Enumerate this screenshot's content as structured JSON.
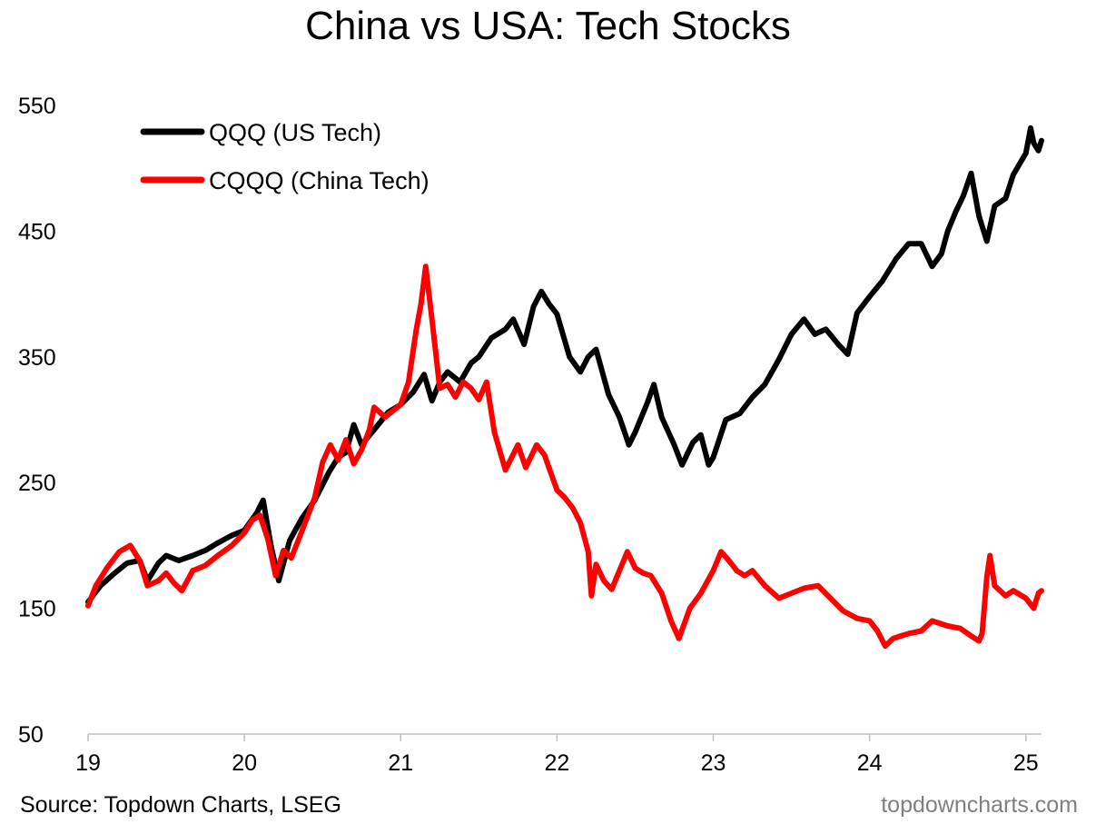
{
  "chart_data": {
    "type": "line",
    "title": "China vs USA: Tech Stocks",
    "xlabel": "",
    "ylabel": "",
    "x_range": [
      2019.0,
      2025.1
    ],
    "ylim": [
      50,
      550
    ],
    "y_ticks": [
      50,
      150,
      250,
      350,
      450,
      550
    ],
    "x_ticks": [
      {
        "value": 2019,
        "label": "19"
      },
      {
        "value": 2020,
        "label": "20"
      },
      {
        "value": 2021,
        "label": "21"
      },
      {
        "value": 2022,
        "label": "22"
      },
      {
        "value": 2023,
        "label": "23"
      },
      {
        "value": 2024,
        "label": "24"
      },
      {
        "value": 2025,
        "label": "25"
      }
    ],
    "grid": false,
    "legend_position": "top-left",
    "series": [
      {
        "name": "QQQ (US Tech)",
        "color": "#000000",
        "points": [
          [
            2019.0,
            155
          ],
          [
            2019.08,
            168
          ],
          [
            2019.17,
            178
          ],
          [
            2019.25,
            186
          ],
          [
            2019.33,
            188
          ],
          [
            2019.38,
            172
          ],
          [
            2019.45,
            186
          ],
          [
            2019.5,
            192
          ],
          [
            2019.58,
            188
          ],
          [
            2019.67,
            192
          ],
          [
            2019.75,
            196
          ],
          [
            2019.83,
            202
          ],
          [
            2019.92,
            208
          ],
          [
            2020.0,
            212
          ],
          [
            2020.08,
            226
          ],
          [
            2020.12,
            236
          ],
          [
            2020.17,
            200
          ],
          [
            2020.22,
            172
          ],
          [
            2020.29,
            204
          ],
          [
            2020.37,
            222
          ],
          [
            2020.45,
            236
          ],
          [
            2020.54,
            258
          ],
          [
            2020.6,
            270
          ],
          [
            2020.65,
            274
          ],
          [
            2020.7,
            296
          ],
          [
            2020.75,
            280
          ],
          [
            2020.83,
            292
          ],
          [
            2020.92,
            306
          ],
          [
            2021.0,
            312
          ],
          [
            2021.08,
            322
          ],
          [
            2021.15,
            336
          ],
          [
            2021.2,
            315
          ],
          [
            2021.25,
            330
          ],
          [
            2021.3,
            338
          ],
          [
            2021.38,
            330
          ],
          [
            2021.45,
            345
          ],
          [
            2021.5,
            350
          ],
          [
            2021.58,
            365
          ],
          [
            2021.67,
            372
          ],
          [
            2021.72,
            380
          ],
          [
            2021.79,
            360
          ],
          [
            2021.85,
            390
          ],
          [
            2021.9,
            402
          ],
          [
            2021.95,
            392
          ],
          [
            2022.0,
            384
          ],
          [
            2022.08,
            350
          ],
          [
            2022.15,
            338
          ],
          [
            2022.2,
            350
          ],
          [
            2022.25,
            356
          ],
          [
            2022.33,
            320
          ],
          [
            2022.4,
            302
          ],
          [
            2022.46,
            280
          ],
          [
            2022.5,
            290
          ],
          [
            2022.58,
            314
          ],
          [
            2022.62,
            328
          ],
          [
            2022.67,
            302
          ],
          [
            2022.75,
            280
          ],
          [
            2022.8,
            264
          ],
          [
            2022.87,
            282
          ],
          [
            2022.92,
            288
          ],
          [
            2022.97,
            264
          ],
          [
            2023.0,
            270
          ],
          [
            2023.08,
            300
          ],
          [
            2023.17,
            305
          ],
          [
            2023.25,
            318
          ],
          [
            2023.33,
            328
          ],
          [
            2023.42,
            348
          ],
          [
            2023.5,
            368
          ],
          [
            2023.58,
            380
          ],
          [
            2023.65,
            368
          ],
          [
            2023.72,
            372
          ],
          [
            2023.8,
            360
          ],
          [
            2023.86,
            352
          ],
          [
            2023.92,
            385
          ],
          [
            2024.0,
            398
          ],
          [
            2024.08,
            410
          ],
          [
            2024.17,
            428
          ],
          [
            2024.25,
            440
          ],
          [
            2024.33,
            440
          ],
          [
            2024.4,
            422
          ],
          [
            2024.46,
            432
          ],
          [
            2024.5,
            450
          ],
          [
            2024.55,
            465
          ],
          [
            2024.6,
            478
          ],
          [
            2024.65,
            496
          ],
          [
            2024.7,
            462
          ],
          [
            2024.75,
            442
          ],
          [
            2024.8,
            470
          ],
          [
            2024.87,
            476
          ],
          [
            2024.92,
            495
          ],
          [
            2025.0,
            512
          ],
          [
            2025.03,
            532
          ],
          [
            2025.05,
            520
          ],
          [
            2025.08,
            514
          ],
          [
            2025.1,
            522
          ]
        ]
      },
      {
        "name": "CQQQ (China Tech)",
        "color": "#ff0000",
        "points": [
          [
            2019.0,
            152
          ],
          [
            2019.05,
            168
          ],
          [
            2019.12,
            182
          ],
          [
            2019.2,
            195
          ],
          [
            2019.27,
            200
          ],
          [
            2019.33,
            188
          ],
          [
            2019.38,
            168
          ],
          [
            2019.45,
            172
          ],
          [
            2019.5,
            178
          ],
          [
            2019.55,
            170
          ],
          [
            2019.6,
            164
          ],
          [
            2019.67,
            180
          ],
          [
            2019.75,
            184
          ],
          [
            2019.83,
            192
          ],
          [
            2019.92,
            200
          ],
          [
            2020.0,
            210
          ],
          [
            2020.05,
            220
          ],
          [
            2020.1,
            224
          ],
          [
            2020.15,
            205
          ],
          [
            2020.2,
            176
          ],
          [
            2020.25,
            196
          ],
          [
            2020.3,
            190
          ],
          [
            2020.37,
            212
          ],
          [
            2020.45,
            238
          ],
          [
            2020.5,
            266
          ],
          [
            2020.55,
            280
          ],
          [
            2020.6,
            268
          ],
          [
            2020.65,
            284
          ],
          [
            2020.7,
            265
          ],
          [
            2020.75,
            276
          ],
          [
            2020.8,
            292
          ],
          [
            2020.83,
            310
          ],
          [
            2020.9,
            302
          ],
          [
            2021.0,
            312
          ],
          [
            2021.05,
            330
          ],
          [
            2021.1,
            372
          ],
          [
            2021.13,
            392
          ],
          [
            2021.16,
            422
          ],
          [
            2021.2,
            380
          ],
          [
            2021.25,
            325
          ],
          [
            2021.3,
            328
          ],
          [
            2021.35,
            318
          ],
          [
            2021.4,
            330
          ],
          [
            2021.45,
            325
          ],
          [
            2021.5,
            316
          ],
          [
            2021.55,
            330
          ],
          [
            2021.6,
            290
          ],
          [
            2021.67,
            260
          ],
          [
            2021.75,
            280
          ],
          [
            2021.8,
            262
          ],
          [
            2021.87,
            280
          ],
          [
            2021.92,
            272
          ],
          [
            2022.0,
            244
          ],
          [
            2022.05,
            238
          ],
          [
            2022.1,
            230
          ],
          [
            2022.15,
            218
          ],
          [
            2022.2,
            195
          ],
          [
            2022.22,
            160
          ],
          [
            2022.25,
            185
          ],
          [
            2022.3,
            172
          ],
          [
            2022.35,
            165
          ],
          [
            2022.4,
            180
          ],
          [
            2022.45,
            195
          ],
          [
            2022.5,
            182
          ],
          [
            2022.55,
            178
          ],
          [
            2022.6,
            176
          ],
          [
            2022.67,
            162
          ],
          [
            2022.73,
            140
          ],
          [
            2022.78,
            126
          ],
          [
            2022.85,
            150
          ],
          [
            2022.92,
            162
          ],
          [
            2023.0,
            180
          ],
          [
            2023.05,
            195
          ],
          [
            2023.1,
            188
          ],
          [
            2023.15,
            180
          ],
          [
            2023.2,
            176
          ],
          [
            2023.25,
            180
          ],
          [
            2023.33,
            168
          ],
          [
            2023.42,
            158
          ],
          [
            2023.5,
            162
          ],
          [
            2023.58,
            166
          ],
          [
            2023.67,
            168
          ],
          [
            2023.75,
            158
          ],
          [
            2023.83,
            148
          ],
          [
            2023.92,
            142
          ],
          [
            2024.0,
            140
          ],
          [
            2024.05,
            132
          ],
          [
            2024.1,
            120
          ],
          [
            2024.15,
            126
          ],
          [
            2024.2,
            128
          ],
          [
            2024.25,
            130
          ],
          [
            2024.33,
            132
          ],
          [
            2024.4,
            140
          ],
          [
            2024.5,
            136
          ],
          [
            2024.58,
            134
          ],
          [
            2024.65,
            128
          ],
          [
            2024.7,
            124
          ],
          [
            2024.72,
            130
          ],
          [
            2024.75,
            175
          ],
          [
            2024.77,
            192
          ],
          [
            2024.8,
            168
          ],
          [
            2024.87,
            160
          ],
          [
            2024.92,
            164
          ],
          [
            2025.0,
            158
          ],
          [
            2025.05,
            150
          ],
          [
            2025.08,
            162
          ],
          [
            2025.1,
            164
          ]
        ]
      }
    ],
    "source_text": "Source: Topdown Charts, LSEG",
    "brand_text": "topdowncharts.com"
  }
}
